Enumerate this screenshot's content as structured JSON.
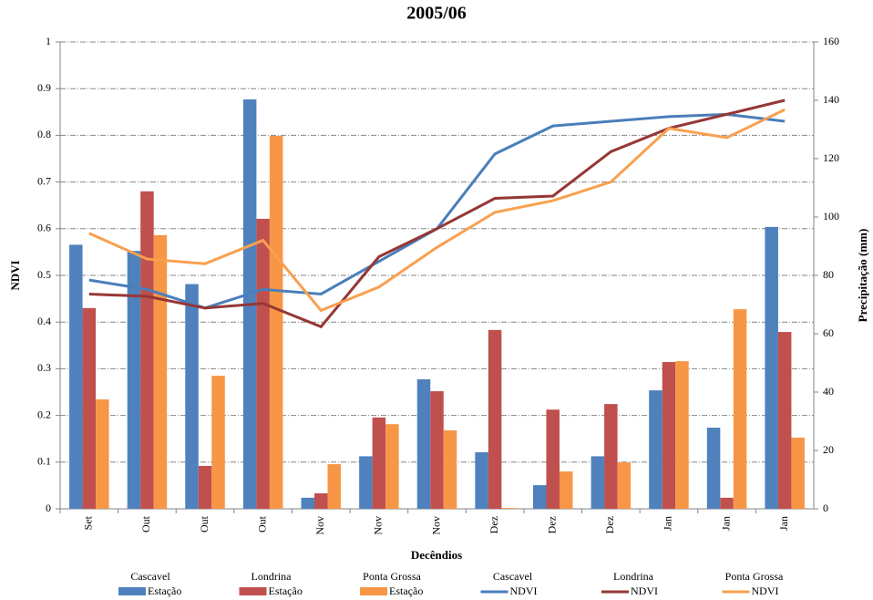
{
  "chart_data": {
    "type": "combo",
    "title": "2005/06",
    "x_label": "Decêndios",
    "y_label": "NDVI",
    "y2_label": "Precipitação (mm)",
    "categories": [
      "Set",
      "Out",
      "Out",
      "Out",
      "Nov",
      "Nov",
      "Nov",
      "Dez",
      "Dez",
      "Dez",
      "Jan",
      "Jan",
      "Jan"
    ],
    "ylim": [
      0,
      1
    ],
    "yticks": [
      0,
      0.1,
      0.2,
      0.3,
      0.4,
      0.5,
      0.6,
      0.7,
      0.8,
      0.9,
      1
    ],
    "y2lim": [
      0,
      160
    ],
    "y2ticks": [
      0,
      20,
      40,
      60,
      80,
      100,
      120,
      140,
      160
    ],
    "grid": true,
    "legend": "bottom",
    "series": [
      {
        "group": "Cascavel",
        "name": "Estação",
        "type": "bar",
        "axis": "y2",
        "color": "#4f81bd",
        "values": [
          90.5,
          88.4,
          77,
          140.3,
          3.8,
          18,
          44.4,
          19.4,
          8.1,
          18,
          40.6,
          27.8,
          96.6
        ]
      },
      {
        "group": "Londrina",
        "name": "Estação",
        "type": "bar",
        "axis": "y2",
        "color": "#c0504d",
        "values": [
          68.8,
          108.8,
          14.7,
          99.4,
          5.3,
          31.3,
          40.3,
          61.3,
          34,
          35.9,
          50.3,
          3.8,
          60.6
        ]
      },
      {
        "group": "Ponta Grossa",
        "name": "Estação",
        "type": "bar",
        "axis": "y2",
        "color": "#f79646",
        "values": [
          37.5,
          93.8,
          45.6,
          127.8,
          15.3,
          29,
          26.9,
          0.3,
          12.8,
          15.9,
          50.6,
          68.4,
          24.4
        ]
      },
      {
        "group": "Cascavel",
        "name": "NDVI",
        "type": "line",
        "color": "#4a7ebb",
        "values": [
          0.49,
          0.47,
          0.43,
          0.47,
          0.46,
          0.53,
          0.6,
          0.76,
          0.82,
          0.83,
          0.84,
          0.845,
          0.83
        ]
      },
      {
        "group": "Londrina",
        "name": "NDVI",
        "type": "line",
        "color": "#953735",
        "values": [
          0.46,
          0.455,
          0.43,
          0.44,
          0.39,
          0.54,
          0.6,
          0.665,
          0.67,
          0.765,
          0.815,
          0.845,
          0.875
        ]
      },
      {
        "group": "Ponta Grossa",
        "name": "NDVI",
        "type": "line",
        "color": "#f9a04f",
        "values": [
          0.59,
          0.535,
          0.525,
          0.575,
          0.425,
          0.475,
          0.56,
          0.635,
          0.66,
          0.7,
          0.815,
          0.795,
          0.855
        ]
      }
    ]
  }
}
